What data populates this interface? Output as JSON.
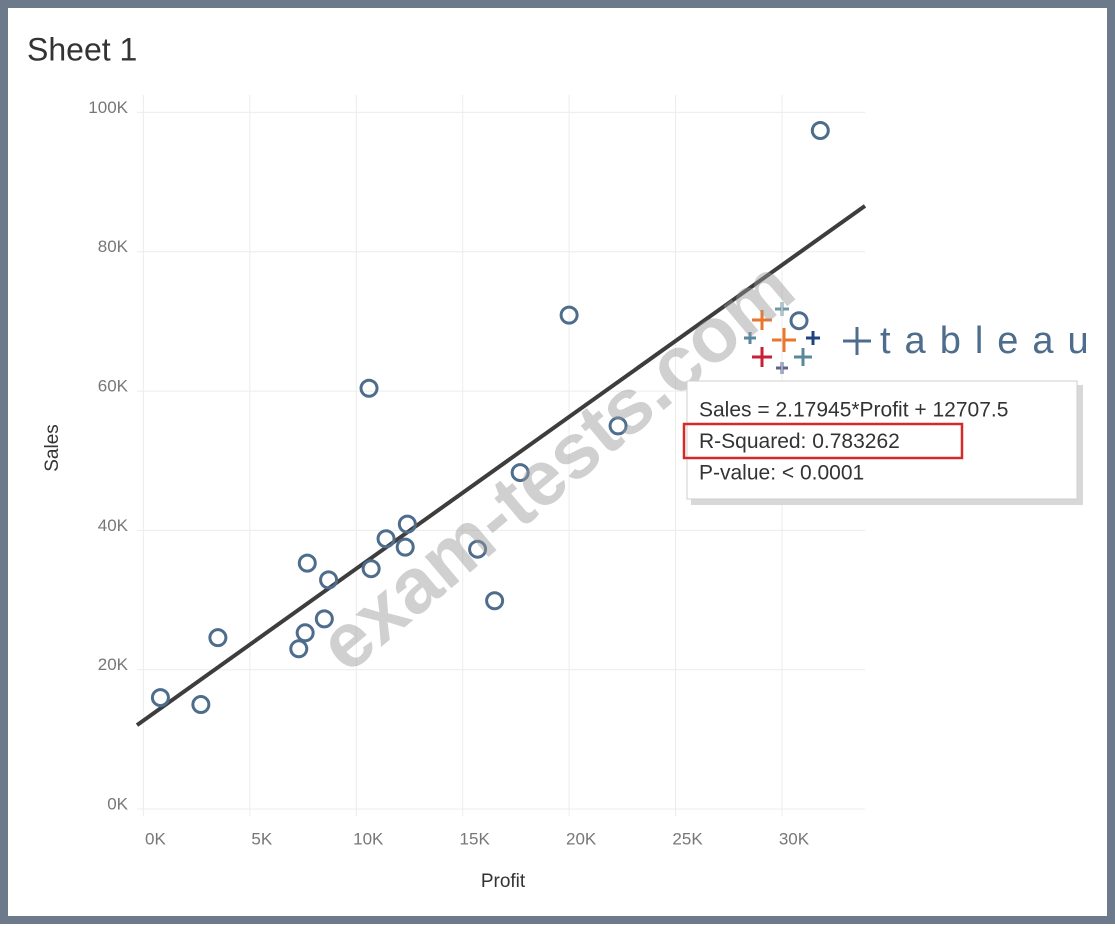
{
  "chart_data": {
    "type": "scatter",
    "title": "Sheet 1",
    "x_label": "Profit",
    "y_label": "Sales",
    "x": [
      800,
      2700,
      3500,
      7300,
      7600,
      7700,
      8500,
      8700,
      10600,
      10700,
      11400,
      12300,
      12400,
      15700,
      16500,
      17700,
      20000,
      22300,
      30800,
      31800
    ],
    "values": [
      16000,
      15000,
      24600,
      23000,
      25300,
      35300,
      27300,
      32900,
      60400,
      34500,
      38800,
      37600,
      40900,
      37300,
      29900,
      48300,
      70900,
      55000,
      70100,
      97400
    ],
    "color": "#4e6d8c",
    "xlim": [
      -300,
      33900
    ],
    "xticks": [
      {
        "value": 0,
        "label": "0K"
      },
      {
        "value": 5000,
        "label": "5K"
      },
      {
        "value": 10000,
        "label": "10K"
      },
      {
        "value": 15000,
        "label": "15K"
      },
      {
        "value": 20000,
        "label": "20K"
      },
      {
        "value": 25000,
        "label": "25K"
      },
      {
        "value": 30000,
        "label": "30K"
      }
    ],
    "ylim": [
      -1000,
      102500
    ],
    "yticks": [
      {
        "value": 0,
        "label": "0K"
      },
      {
        "value": 20000,
        "label": "20K"
      },
      {
        "value": 40000,
        "label": "40K"
      },
      {
        "value": 60000,
        "label": "60K"
      },
      {
        "value": 80000,
        "label": "80K"
      },
      {
        "value": 100000,
        "label": "100K"
      }
    ],
    "grid": true,
    "trendline": {
      "slope": 2.17945,
      "intercept": 12707.5,
      "color": "#3d3d3d"
    },
    "tooltip": [
      "Sales = 2.17945*Profit + 12707.5",
      "R-Squared: 0.783262",
      "P-value: < 0.0001"
    ],
    "logo": "tableau",
    "watermark": "exam-tests.com"
  }
}
